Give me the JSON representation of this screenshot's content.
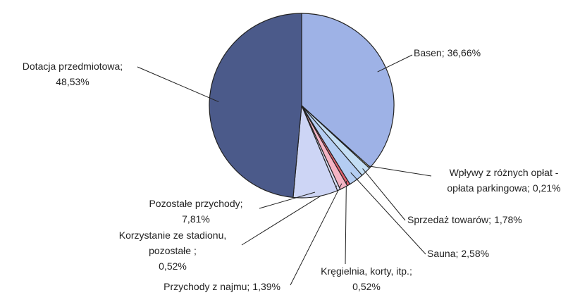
{
  "chart_data": {
    "type": "pie",
    "categories": [
      [
        "Basen;"
      ],
      [
        "Wpływy z różnych opłat -",
        "opłata parkingowa;"
      ],
      [
        "Sprzedaż towarów;"
      ],
      [
        "Sauna;"
      ],
      [
        "Kręgielnia, korty,  itp.;"
      ],
      [
        "Przychody z najmu;"
      ],
      [
        "Korzystanie ze stadionu,",
        "pozostałe ;"
      ],
      [
        "Pozostałe przychody;"
      ],
      [
        "Dotacja przedmiotowa;"
      ]
    ],
    "values": [
      36.66,
      0.21,
      1.78,
      2.58,
      0.52,
      1.39,
      0.52,
      7.81,
      48.53
    ],
    "value_labels": [
      "36,66%",
      "0,21%",
      "1,78%",
      "2,58%",
      "0,52%",
      "1,39%",
      "0,52%",
      "7,81%",
      "48,53%"
    ],
    "colors": [
      "#9eb2e6",
      "#fcfcc0",
      "#c4def4",
      "#b4cdf2",
      "#e0606e",
      "#f4b4c4",
      "#d8dcf4",
      "#cdd5f5",
      "#4b5a8a"
    ]
  }
}
